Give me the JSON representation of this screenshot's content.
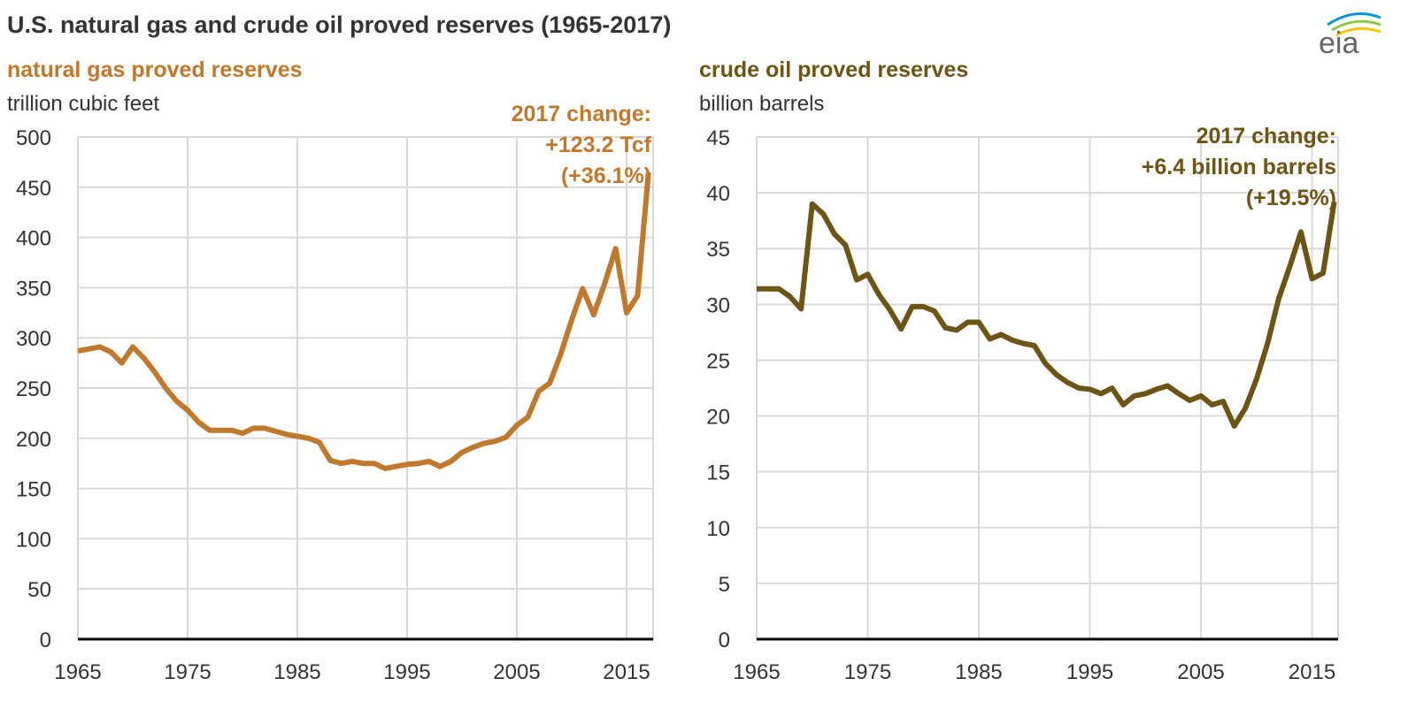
{
  "title": "U.S. natural gas and crude oil proved reserves (1965-2017)",
  "logo_text": "eia",
  "colors": {
    "gas": "#c0782c",
    "oil": "#6b5414",
    "grid": "#d9d9d9",
    "text": "#333333"
  },
  "chart_data": [
    {
      "type": "line",
      "title": "natural gas proved reserves",
      "ylabel": "trillion cubic feet",
      "ylim": [
        0,
        500
      ],
      "yticks": [
        0,
        50,
        100,
        150,
        200,
        250,
        300,
        350,
        400,
        450,
        500
      ],
      "xlim": [
        1965,
        2017
      ],
      "xticks": [
        1965,
        1975,
        1985,
        1995,
        2005,
        2015
      ],
      "grid": true,
      "annotation": [
        "2017 change:",
        "+123.2 Tcf",
        "(+36.1%)"
      ],
      "series": [
        {
          "name": "natural gas proved reserves",
          "x_start": 1965,
          "values": [
            287,
            289,
            291,
            286,
            275,
            291,
            280,
            266,
            250,
            237,
            228,
            216,
            208,
            208,
            208,
            205,
            210,
            210,
            207,
            204,
            202,
            200,
            196,
            178,
            175,
            177,
            175,
            175,
            170,
            172,
            174,
            175,
            177,
            172,
            177,
            186,
            191,
            195,
            197,
            201,
            213,
            221,
            247,
            255,
            284,
            318,
            349,
            323,
            354,
            389,
            325,
            342,
            465
          ]
        }
      ]
    },
    {
      "type": "line",
      "title": "crude oil proved reserves",
      "ylabel": "billion barrels",
      "ylim": [
        0,
        45
      ],
      "yticks": [
        0,
        5,
        10,
        15,
        20,
        25,
        30,
        35,
        40,
        45
      ],
      "xlim": [
        1965,
        2017
      ],
      "xticks": [
        1965,
        1975,
        1985,
        1995,
        2005,
        2015
      ],
      "grid": true,
      "annotation": [
        "2017 change:",
        "+6.4 billion barrels",
        "(+19.5%)"
      ],
      "series": [
        {
          "name": "crude oil proved reserves",
          "x_start": 1965,
          "values": [
            31.4,
            31.4,
            31.4,
            30.7,
            29.6,
            39.0,
            38.1,
            36.3,
            35.3,
            32.2,
            32.7,
            30.9,
            29.5,
            27.8,
            29.8,
            29.8,
            29.4,
            27.9,
            27.7,
            28.4,
            28.4,
            26.9,
            27.3,
            26.8,
            26.5,
            26.3,
            24.7,
            23.7,
            23.0,
            22.5,
            22.4,
            22.0,
            22.5,
            21.0,
            21.8,
            22.0,
            22.4,
            22.7,
            22.0,
            21.4,
            21.8,
            21.0,
            21.3,
            19.1,
            20.7,
            23.3,
            26.5,
            30.5,
            33.4,
            36.5,
            32.3,
            32.8,
            39.2
          ]
        }
      ]
    }
  ]
}
